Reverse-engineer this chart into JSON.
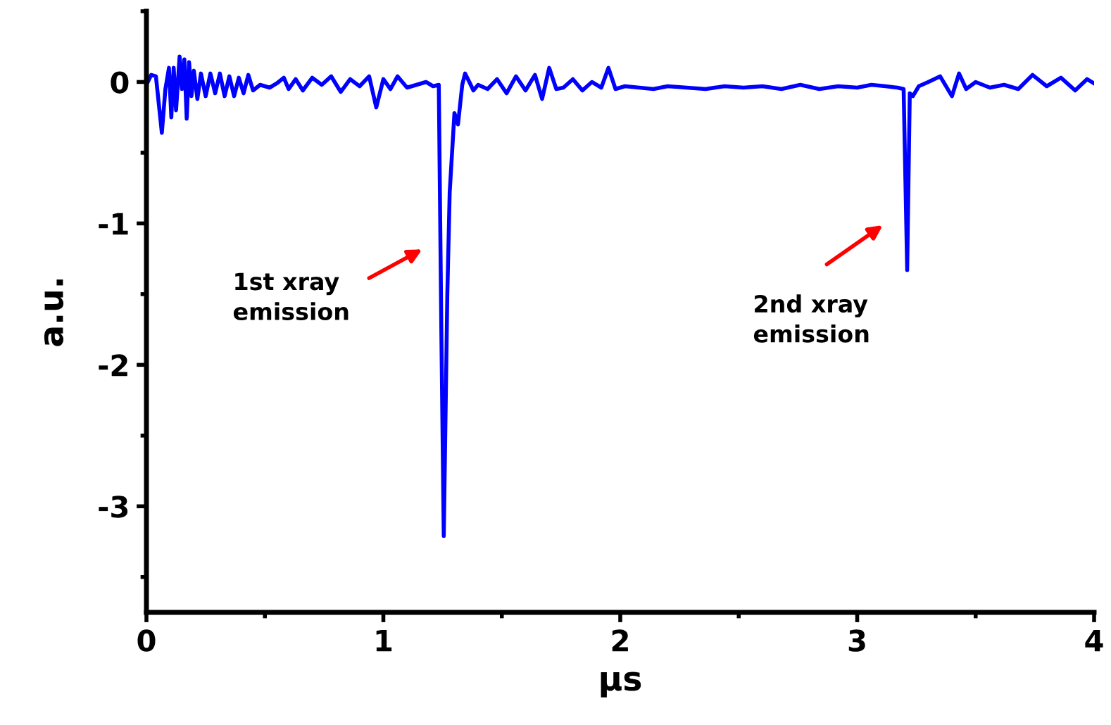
{
  "chart_data": {
    "type": "line",
    "xlabel": "μs",
    "ylabel": "a.u.",
    "xlim": [
      0,
      4
    ],
    "ylim": [
      -3.75,
      0.5
    ],
    "xticks": [
      0,
      1,
      2,
      3,
      4
    ],
    "yticks": [
      -3,
      -2,
      -1,
      0
    ],
    "grid": false,
    "marker": "none",
    "line_style": "solid",
    "annotations": [
      "1st xray\nemission",
      "2nd xray\nemission"
    ],
    "series": [
      {
        "color": "#0000ff",
        "x": [
          0,
          0.02,
          0.04,
          0.055,
          0.065,
          0.08,
          0.095,
          0.105,
          0.115,
          0.125,
          0.14,
          0.15,
          0.16,
          0.17,
          0.18,
          0.19,
          0.2,
          0.215,
          0.23,
          0.25,
          0.27,
          0.29,
          0.31,
          0.33,
          0.35,
          0.37,
          0.39,
          0.41,
          0.43,
          0.45,
          0.48,
          0.5,
          0.52,
          0.55,
          0.58,
          0.6,
          0.63,
          0.66,
          0.7,
          0.74,
          0.78,
          0.82,
          0.86,
          0.9,
          0.94,
          0.97,
          1.0,
          1.03,
          1.06,
          1.1,
          1.14,
          1.18,
          1.21,
          1.234,
          1.245,
          1.255,
          1.27,
          1.28,
          1.3,
          1.315,
          1.333,
          1.345,
          1.363,
          1.38,
          1.4,
          1.44,
          1.48,
          1.52,
          1.56,
          1.6,
          1.64,
          1.67,
          1.7,
          1.73,
          1.76,
          1.8,
          1.84,
          1.88,
          1.92,
          1.95,
          1.98,
          2.02,
          2.08,
          2.14,
          2.2,
          2.28,
          2.36,
          2.44,
          2.52,
          2.6,
          2.68,
          2.76,
          2.84,
          2.92,
          3.0,
          3.06,
          3.12,
          3.17,
          3.196,
          3.211,
          3.222,
          3.235,
          3.26,
          3.3,
          3.35,
          3.4,
          3.43,
          3.46,
          3.5,
          3.56,
          3.62,
          3.68,
          3.74,
          3.8,
          3.86,
          3.92,
          3.97,
          4.0
        ],
        "values": [
          -0.02,
          0.05,
          0.04,
          -0.2,
          -0.36,
          -0.05,
          0.1,
          -0.25,
          0.1,
          -0.2,
          0.18,
          -0.05,
          0.16,
          -0.26,
          0.14,
          -0.1,
          0.08,
          -0.12,
          0.06,
          -0.1,
          0.06,
          -0.08,
          0.06,
          -0.1,
          0.04,
          -0.1,
          0.03,
          -0.08,
          0.05,
          -0.06,
          -0.02,
          -0.03,
          -0.04,
          -0.01,
          0.03,
          -0.05,
          0.02,
          -0.06,
          0.03,
          -0.02,
          0.04,
          -0.07,
          0.02,
          -0.03,
          0.04,
          -0.18,
          0.02,
          -0.05,
          0.04,
          -0.04,
          -0.02,
          0.0,
          -0.03,
          -0.02,
          -1.8,
          -3.21,
          -1.5,
          -0.78,
          -0.22,
          -0.3,
          -0.02,
          0.06,
          0.0,
          -0.06,
          -0.02,
          -0.05,
          0.02,
          -0.08,
          0.04,
          -0.06,
          0.05,
          -0.12,
          0.1,
          -0.05,
          -0.04,
          0.02,
          -0.06,
          0.0,
          -0.04,
          0.1,
          -0.05,
          -0.03,
          -0.04,
          -0.05,
          -0.03,
          -0.04,
          -0.05,
          -0.03,
          -0.04,
          -0.03,
          -0.05,
          -0.02,
          -0.05,
          -0.03,
          -0.04,
          -0.02,
          -0.03,
          -0.04,
          -0.05,
          -1.33,
          -0.08,
          -0.1,
          -0.03,
          0.0,
          0.04,
          -0.1,
          0.06,
          -0.05,
          0.0,
          -0.04,
          -0.02,
          -0.05,
          0.05,
          -0.03,
          0.03,
          -0.06,
          0.02,
          -0.01
        ]
      }
    ]
  }
}
